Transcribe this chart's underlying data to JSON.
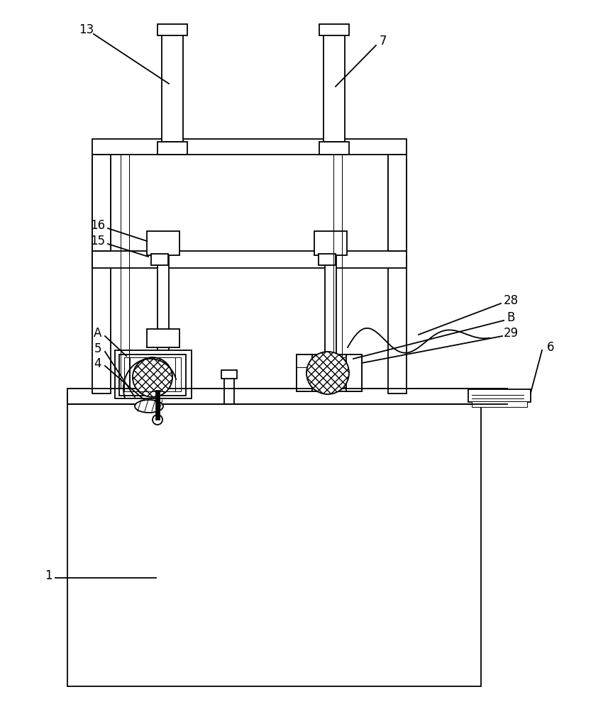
{
  "bg_color": "#ffffff",
  "lc": "#000000",
  "lw": 1.3,
  "tlw": 0.7,
  "fs": 12,
  "fig_width": 8.57,
  "fig_height": 10.0
}
